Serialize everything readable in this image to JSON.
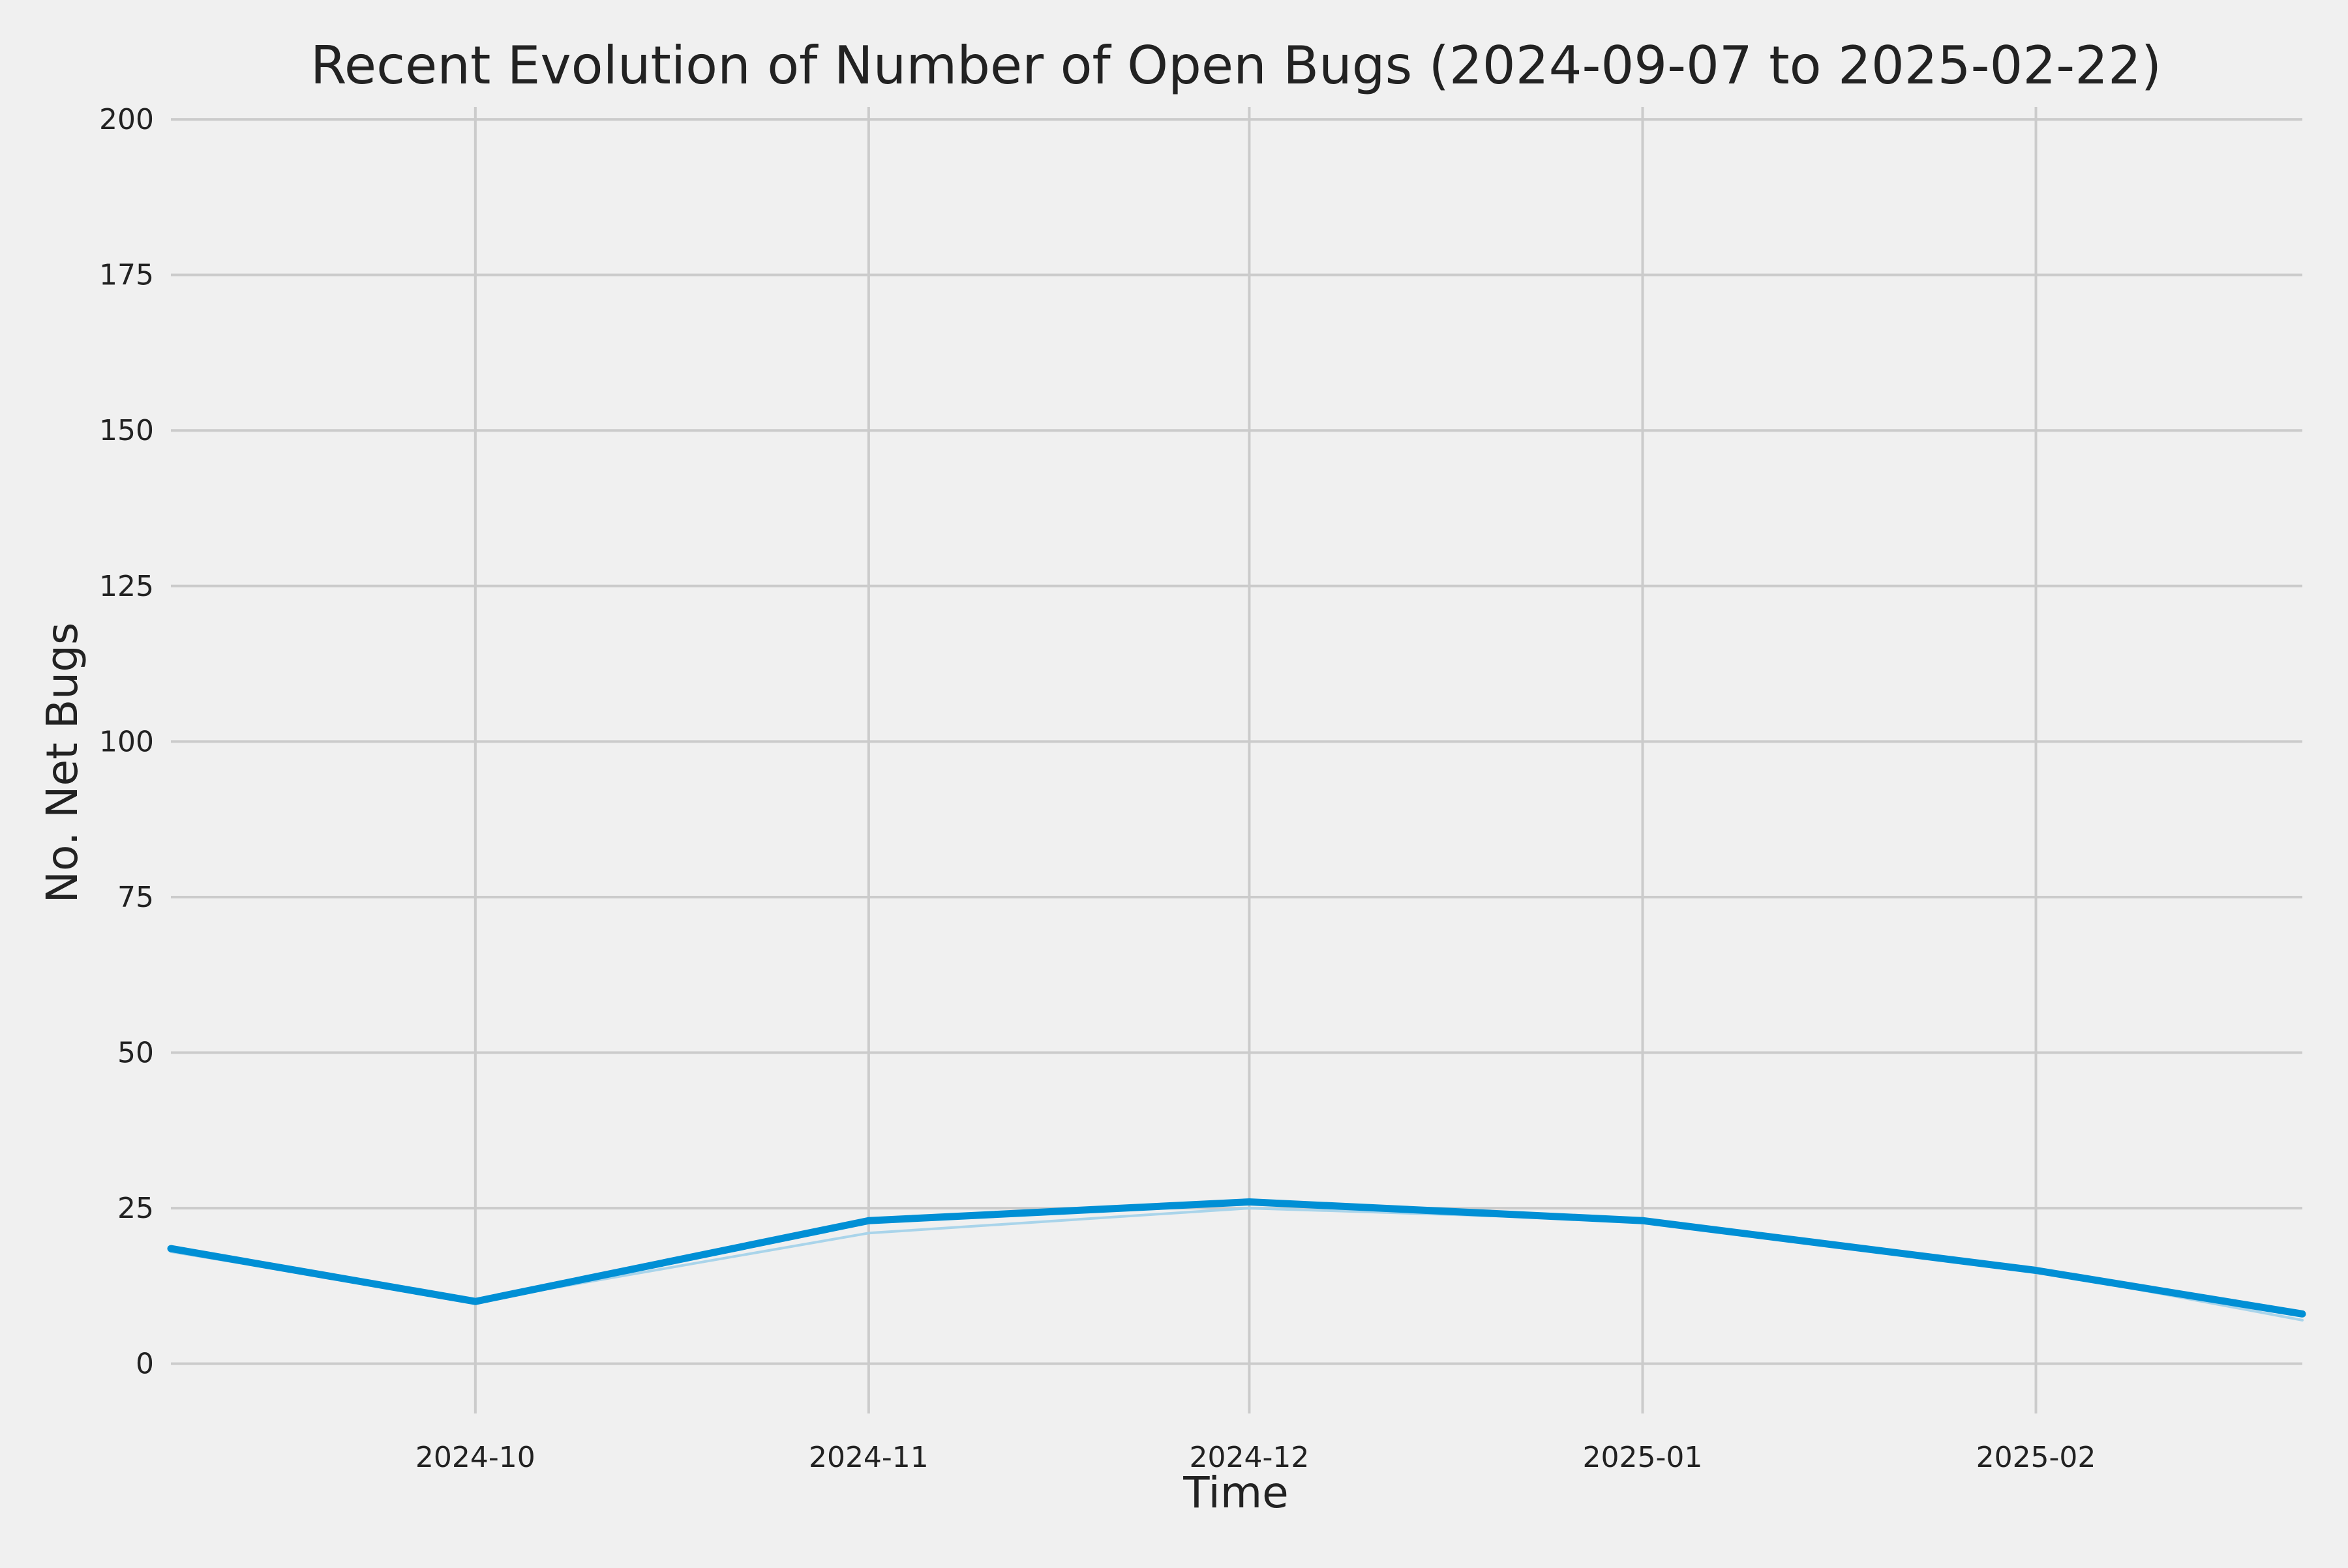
{
  "chart_data": {
    "type": "line",
    "title": "Recent Evolution of Number of Open Bugs (2024-09-07 to 2025-02-22)",
    "xlabel": "Time",
    "ylabel": "No. Net Bugs",
    "xlim": [
      "2024-09-07",
      "2025-02-22"
    ],
    "ylim": [
      -8,
      202
    ],
    "x_ticks": [
      {
        "date": "2024-10-01",
        "label": "2024-10"
      },
      {
        "date": "2024-11-01",
        "label": "2024-11"
      },
      {
        "date": "2024-12-01",
        "label": "2024-12"
      },
      {
        "date": "2025-01-01",
        "label": "2025-01"
      },
      {
        "date": "2025-02-01",
        "label": "2025-02"
      }
    ],
    "y_ticks": [
      0,
      25,
      50,
      75,
      100,
      125,
      150,
      175,
      200
    ],
    "grid": true,
    "legend": "none",
    "colors": {
      "background": "#f0f0f0",
      "grid": "#cbcbcb",
      "main_line": "#008fd5",
      "faint_line": "#a9d4ea",
      "text": "#222222"
    },
    "series": [
      {
        "style": "thick",
        "points": [
          {
            "x": "2024-09-07",
            "y": 18.5
          },
          {
            "x": "2024-10-01",
            "y": 10
          },
          {
            "x": "2024-11-01",
            "y": 23
          },
          {
            "x": "2024-12-01",
            "y": 26
          },
          {
            "x": "2025-01-01",
            "y": 23
          },
          {
            "x": "2025-02-01",
            "y": 15
          },
          {
            "x": "2025-02-22",
            "y": 8
          }
        ]
      },
      {
        "style": "faint",
        "points": [
          {
            "x": "2024-09-07",
            "y": 18
          },
          {
            "x": "2024-10-01",
            "y": 10
          },
          {
            "x": "2024-11-01",
            "y": 21
          },
          {
            "x": "2024-12-01",
            "y": 25
          },
          {
            "x": "2025-01-01",
            "y": 23
          },
          {
            "x": "2025-02-01",
            "y": 15
          },
          {
            "x": "2025-02-22",
            "y": 7
          }
        ]
      }
    ]
  }
}
